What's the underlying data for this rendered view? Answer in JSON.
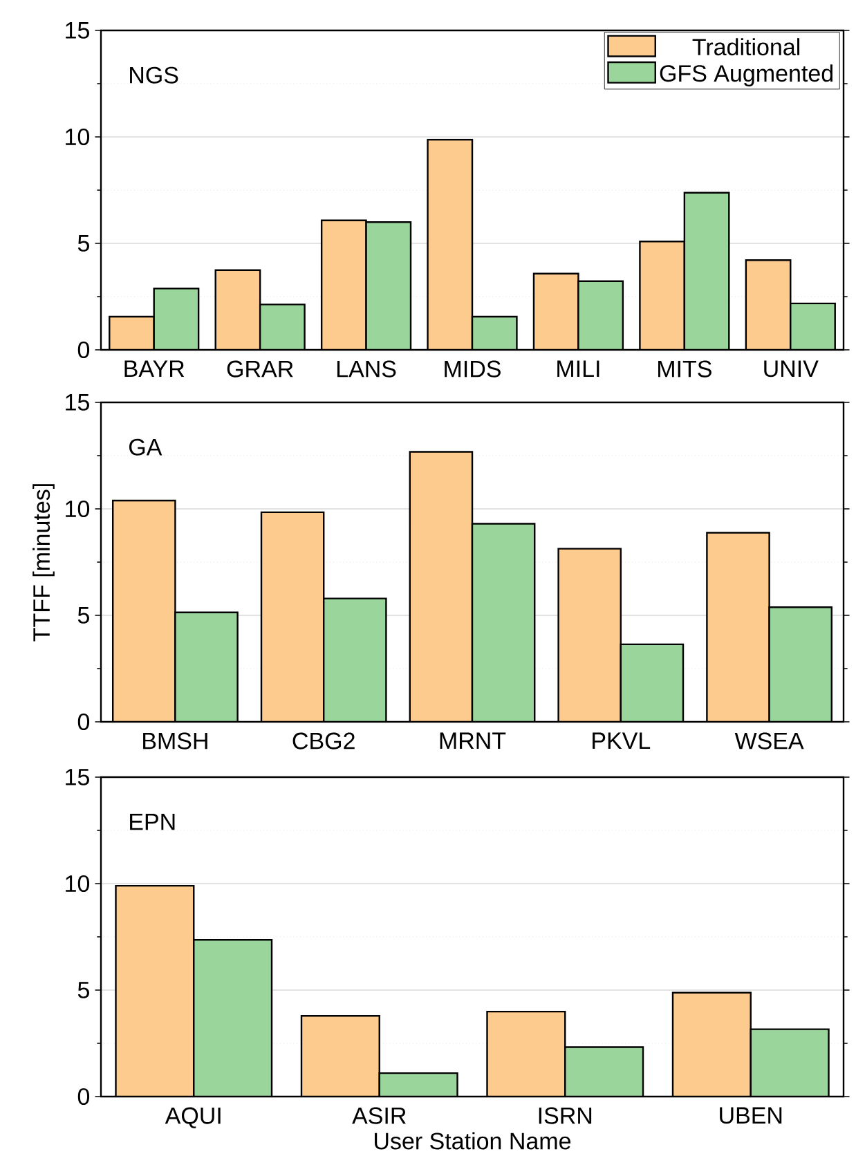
{
  "chart_data": [
    {
      "type": "bar",
      "annotations": [
        "NGS"
      ],
      "categories": [
        "BAYR",
        "GRAR",
        "LANS",
        "MIDS",
        "MILI",
        "MITS",
        "UNIV"
      ],
      "series": [
        {
          "name": "Traditional",
          "color": "#fecb8f",
          "values": [
            1.56,
            3.74,
            6.08,
            9.87,
            3.58,
            5.09,
            4.21
          ]
        },
        {
          "name": "GFS Augmented",
          "color": "#9ad69b",
          "values": [
            2.88,
            2.13,
            6.0,
            1.56,
            3.22,
            7.38,
            2.18
          ]
        }
      ],
      "ylim": [
        0,
        15
      ],
      "yticks": [
        0,
        5,
        10,
        15
      ],
      "grid": "y",
      "legend": "top right"
    },
    {
      "type": "bar",
      "annotations": [
        "GA"
      ],
      "ylabel": "TTFF [minutes]",
      "categories": [
        "BMSH",
        "CBG2",
        "MRNT",
        "PKVL",
        "WSEA"
      ],
      "series": [
        {
          "color": "#fecb8f",
          "values": [
            10.39,
            9.84,
            12.68,
            8.13,
            8.88
          ]
        },
        {
          "color": "#9ad69b",
          "values": [
            5.14,
            5.79,
            9.3,
            3.64,
            5.38
          ]
        }
      ],
      "ylim": [
        0,
        15
      ],
      "yticks": [
        0,
        5,
        10,
        15
      ],
      "grid": "y"
    },
    {
      "type": "bar",
      "annotations": [
        "EPN"
      ],
      "xlabel": "User Station Name",
      "categories": [
        "AQUI",
        "ASIR",
        "ISRN",
        "UBEN"
      ],
      "series": [
        {
          "color": "#fecb8f",
          "values": [
            9.9,
            3.79,
            3.99,
            4.88
          ]
        },
        {
          "color": "#9ad69b",
          "values": [
            7.36,
            1.1,
            2.32,
            3.16
          ]
        }
      ],
      "ylim": [
        0,
        15
      ],
      "yticks": [
        0,
        5,
        10,
        15
      ],
      "grid": "y"
    }
  ]
}
